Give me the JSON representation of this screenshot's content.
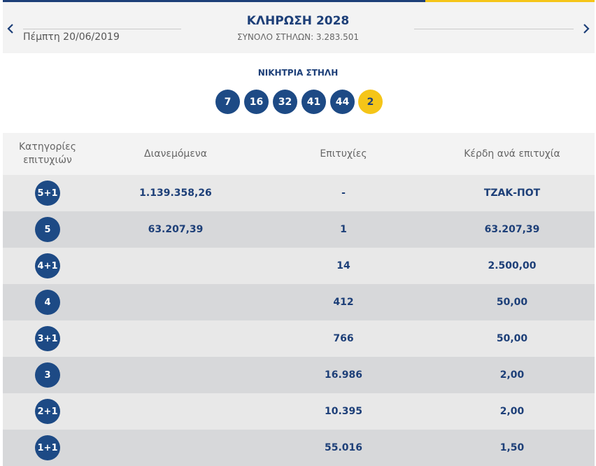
{
  "header": {
    "date": "Πέμπτη 20/06/2019",
    "draw_title": "ΚΛΗΡΩΣΗ 2028",
    "total_columns": "ΣΥΝΟΛΟ ΣΤΗΛΩΝ: 3.283.501",
    "accent_blue": "#1d3f78",
    "accent_yellow": "#f5c518"
  },
  "winning": {
    "label": "ΝΙΚΗΤΡΙΑ ΣΤΗΛΗ",
    "numbers": [
      "7",
      "16",
      "32",
      "41",
      "44"
    ],
    "bonus": "2"
  },
  "table": {
    "headers": {
      "categories": "Κατηγορίες επιτυχιών",
      "distributed": "Διανεμόμενα",
      "winners": "Επιτυχίες",
      "prize": "Κέρδη ανά επιτυχία"
    },
    "rows": [
      {
        "category": "5+1",
        "distributed": "1.139.358,26",
        "winners": "-",
        "prize": "ΤΖΑΚ-ΠΟΤ"
      },
      {
        "category": "5",
        "distributed": "63.207,39",
        "winners": "1",
        "prize": "63.207,39"
      },
      {
        "category": "4+1",
        "distributed": "",
        "winners": "14",
        "prize": "2.500,00"
      },
      {
        "category": "4",
        "distributed": "",
        "winners": "412",
        "prize": "50,00"
      },
      {
        "category": "3+1",
        "distributed": "",
        "winners": "766",
        "prize": "50,00"
      },
      {
        "category": "3",
        "distributed": "",
        "winners": "16.986",
        "prize": "2,00"
      },
      {
        "category": "2+1",
        "distributed": "",
        "winners": "10.395",
        "prize": "2,00"
      },
      {
        "category": "1+1",
        "distributed": "",
        "winners": "55.016",
        "prize": "1,50"
      }
    ]
  },
  "icons": {
    "prev": "chevron-left-icon",
    "next": "chevron-right-icon"
  }
}
